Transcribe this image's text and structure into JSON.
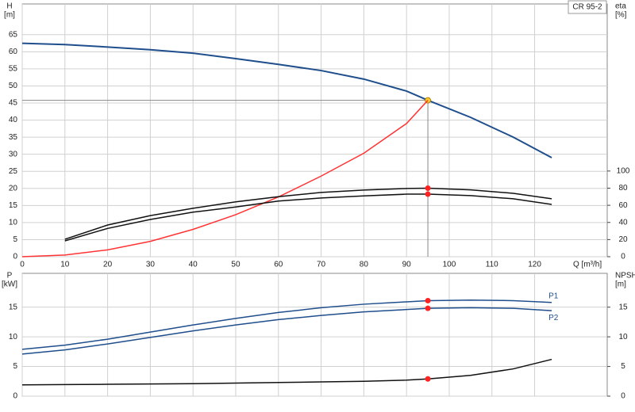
{
  "chart_data": [
    {
      "type": "line",
      "title": "CR 95-2",
      "xlabel": "Q [m³/h]",
      "ylabel": [
        "H",
        "[m]"
      ],
      "y2label": [
        "eta",
        "[%]"
      ],
      "x": [
        0,
        10,
        20,
        30,
        40,
        50,
        60,
        70,
        80,
        90,
        95,
        105,
        115,
        124
      ],
      "xlim": [
        0,
        137
      ],
      "xticks": [
        0,
        10,
        20,
        30,
        40,
        50,
        60,
        70,
        80,
        90,
        100,
        110,
        120
      ],
      "ylim": [
        0,
        74
      ],
      "yticks": [
        0,
        5,
        10,
        15,
        20,
        25,
        30,
        35,
        40,
        45,
        50,
        55,
        60,
        65
      ],
      "y2lim": [
        0,
        295
      ],
      "y2ticks": [
        0,
        20,
        40,
        60,
        80,
        100
      ],
      "grid": true,
      "highlight_x": 95,
      "guide": true,
      "series": [
        {
          "color": "#1f4e8c",
          "marker_color": "#ffcc33",
          "values": [
            62.5,
            62.1,
            61.4,
            60.6,
            59.6,
            58.0,
            56.3,
            54.5,
            52.0,
            48.5,
            45.8,
            40.8,
            35.0,
            29.0
          ]
        },
        {
          "color": "#ff3333",
          "values": [
            0,
            0.5,
            2.0,
            4.5,
            8.0,
            12.3,
            17.5,
            23.6,
            30.3,
            39.0,
            45.8,
            null,
            null,
            null
          ]
        },
        {
          "color": "#111111",
          "axis": "y2",
          "marker_color": "#ff2222",
          "values": [
            null,
            20.4,
            37,
            48,
            56.5,
            64,
            70,
            75,
            77.8,
            79.6,
            80,
            78,
            74,
            67.6
          ]
        },
        {
          "color": "#111111",
          "axis": "y2",
          "marker_color": "#ff2222",
          "values": [
            null,
            18.5,
            33,
            43.5,
            52,
            58,
            65,
            68.5,
            71,
            73,
            73,
            71.3,
            67.6,
            61
          ]
        }
      ]
    },
    {
      "type": "line",
      "ylabel": [
        "P",
        "[kW]"
      ],
      "y2label": [
        "NPSH",
        "[m]"
      ],
      "x": [
        0,
        10,
        20,
        30,
        40,
        50,
        60,
        70,
        80,
        90,
        95,
        105,
        115,
        124
      ],
      "xlim": [
        0,
        137
      ],
      "xticks": [
        0,
        10,
        20,
        30,
        40,
        50,
        60,
        70,
        80,
        90,
        100,
        110,
        120
      ],
      "ylim": [
        0,
        20.7
      ],
      "yticks": [
        0,
        5,
        10,
        15
      ],
      "y2lim": [
        0,
        20.7
      ],
      "y2ticks": [
        0,
        5,
        10,
        15
      ],
      "grid": true,
      "highlight_x": 95,
      "series": [
        {
          "name": "P1",
          "color": "#1f4e8c",
          "marker_color": "#ff2222",
          "values": [
            7.9,
            8.6,
            9.6,
            10.8,
            12.0,
            13.1,
            14.1,
            14.9,
            15.5,
            15.9,
            16.1,
            16.2,
            16.1,
            15.8
          ]
        },
        {
          "name": "P2",
          "color": "#1f4e8c",
          "marker_color": "#ff2222",
          "values": [
            7.1,
            7.8,
            8.8,
            9.9,
            11.0,
            12.0,
            12.9,
            13.6,
            14.2,
            14.6,
            14.8,
            14.9,
            14.8,
            14.4
          ]
        },
        {
          "color": "#111111",
          "axis": "y2",
          "marker_color": "#ff2222",
          "values": [
            1.9,
            1.95,
            2.0,
            2.05,
            2.1,
            2.2,
            2.3,
            2.4,
            2.5,
            2.7,
            2.9,
            3.5,
            4.6,
            6.2
          ]
        }
      ]
    }
  ]
}
